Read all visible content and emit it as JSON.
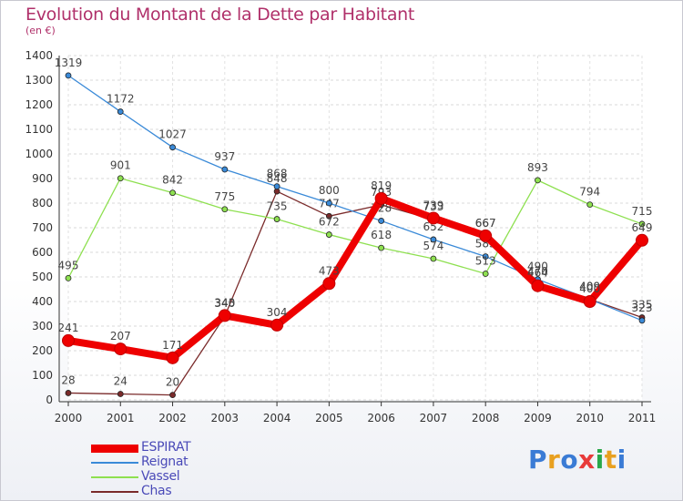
{
  "title": "Evolution du Montant de la Dette par Habitant",
  "subtitle": "(en €)",
  "logo": {
    "text": "Proxiti",
    "letter_colors": [
      "#3a7bd5",
      "#e8a020",
      "#3a7bd5",
      "#e83a3a",
      "#2aa84a",
      "#e8a020",
      "#3a7bd5"
    ]
  },
  "chart_data": {
    "type": "line",
    "x": [
      "2000",
      "2001",
      "2002",
      "2003",
      "2004",
      "2005",
      "2006",
      "2007",
      "2008",
      "2009",
      "2010",
      "2011"
    ],
    "ylim": [
      0,
      1400
    ],
    "yticks": [
      0,
      100,
      200,
      300,
      400,
      500,
      600,
      700,
      800,
      900,
      1000,
      1100,
      1200,
      1300,
      1400
    ],
    "grid": true,
    "legend_position": "bottom-left",
    "series": [
      {
        "name": "Chas",
        "color": "#7a2a2a",
        "values": [
          28,
          24,
          20,
          340,
          848,
          747,
          793,
          733,
          667,
          470,
          409,
          335
        ],
        "labels": [
          "28",
          "24",
          "20",
          "340",
          "848",
          "747",
          "793",
          "733",
          "667",
          "470",
          "409",
          "335"
        ]
      },
      {
        "name": "Reignat",
        "color": "#3a8ad8",
        "values": [
          1319,
          1172,
          1027,
          937,
          868,
          800,
          728,
          652,
          583,
          490,
          409,
          323
        ],
        "labels": [
          "1319",
          "1172",
          "1027",
          "937",
          "868",
          "800",
          "728",
          "652",
          "583",
          "490",
          "409",
          "323"
        ]
      },
      {
        "name": "Vassel",
        "color": "#8ee050",
        "values": [
          495,
          901,
          842,
          775,
          735,
          672,
          618,
          574,
          513,
          893,
          794,
          715
        ],
        "labels": [
          "495",
          "901",
          "842",
          "775",
          "735",
          "672",
          "618",
          "574",
          "513",
          "893",
          "794",
          "715"
        ]
      },
      {
        "name": "ESPIRAT",
        "color": "#ee0000",
        "values": [
          241,
          207,
          171,
          343,
          304,
          473,
          819,
          739,
          667,
          464,
          400,
          649
        ],
        "labels": [
          "241",
          "207",
          "171",
          "343",
          "304",
          "473",
          "819",
          "739",
          "667",
          "464",
          "400",
          "649"
        ]
      }
    ],
    "legend_order": [
      "ESPIRAT",
      "Reignat",
      "Vassel",
      "Chas"
    ]
  }
}
